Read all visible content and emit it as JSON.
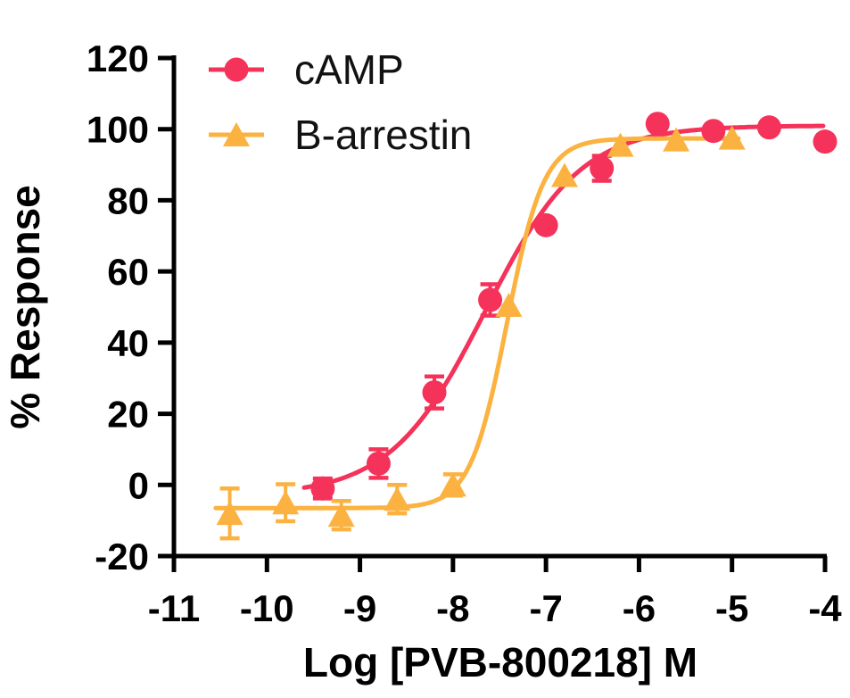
{
  "chart_data": {
    "type": "scatter",
    "subtype": "dose-response curves with 4PL fits and error bars",
    "title": "",
    "xlabel": "Log [PVB-800218] M",
    "ylabel": "% Response",
    "xlim": [
      -11,
      -4
    ],
    "ylim": [
      -20,
      120
    ],
    "x_ticks": [
      -11,
      -10,
      -9,
      -8,
      -7,
      -6,
      -5,
      -4
    ],
    "y_ticks": [
      -20,
      0,
      20,
      40,
      60,
      80,
      100,
      120
    ],
    "grid": false,
    "legend_position": "top-left-inside",
    "axis_color": "#000000",
    "series": [
      {
        "name": "cAMP",
        "color": "#F4325A",
        "marker": "circle",
        "points": [
          {
            "x": -9.4,
            "y": -1,
            "err": 2.8
          },
          {
            "x": -8.8,
            "y": 6,
            "err": 4
          },
          {
            "x": -8.2,
            "y": 26,
            "err": 4.5
          },
          {
            "x": -7.6,
            "y": 52,
            "err": 4.4
          },
          {
            "x": -7.0,
            "y": 73,
            "err": 0
          },
          {
            "x": -6.4,
            "y": 89,
            "err": 3.5
          },
          {
            "x": -5.8,
            "y": 101.5,
            "err": 0
          },
          {
            "x": -5.2,
            "y": 99.5,
            "err": 0
          },
          {
            "x": -4.6,
            "y": 100.5,
            "err": 0
          },
          {
            "x": -4.0,
            "y": 96.5,
            "err": 0
          }
        ],
        "fit": {
          "model": "4PL",
          "bottom": -3,
          "top": 101,
          "logEC50": -7.65,
          "hill": 0.85,
          "range": [
            -9.6,
            -4.02
          ]
        }
      },
      {
        "name": "B-arrestin",
        "color": "#FBB240",
        "marker": "triangle",
        "points": [
          {
            "x": -10.4,
            "y": -8,
            "err": 7
          },
          {
            "x": -9.8,
            "y": -5,
            "err": 5.2
          },
          {
            "x": -9.2,
            "y": -8.5,
            "err": 4
          },
          {
            "x": -8.6,
            "y": -4,
            "err": 4
          },
          {
            "x": -8.0,
            "y": 0,
            "err": 3
          },
          {
            "x": -7.4,
            "y": 50.5,
            "err": 0
          },
          {
            "x": -6.8,
            "y": 87,
            "err": 0
          },
          {
            "x": -6.2,
            "y": 95.5,
            "err": 0
          },
          {
            "x": -5.6,
            "y": 97,
            "err": 0
          },
          {
            "x": -5.0,
            "y": 97.5,
            "err": 0
          }
        ],
        "fit": {
          "model": "4PL",
          "bottom": -6.5,
          "top": 97.4,
          "logEC50": -7.42,
          "hill": 2.2,
          "range": [
            -10.55,
            -4.93
          ]
        }
      }
    ]
  }
}
